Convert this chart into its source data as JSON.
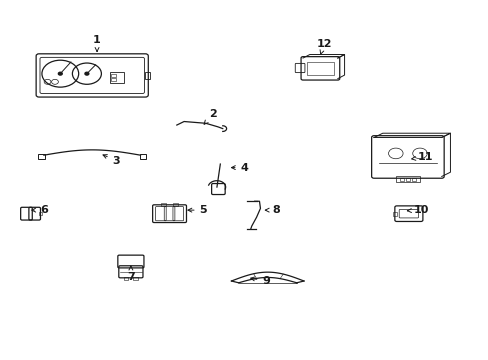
{
  "background_color": "#ffffff",
  "line_color": "#1a1a1a",
  "fig_width": 4.89,
  "fig_height": 3.6,
  "dpi": 100,
  "label_offsets": {
    "1": [
      0.195,
      0.895,
      0.195,
      0.852
    ],
    "2": [
      0.435,
      0.685,
      0.415,
      0.655
    ],
    "3": [
      0.235,
      0.555,
      0.2,
      0.575
    ],
    "4": [
      0.5,
      0.535,
      0.465,
      0.535
    ],
    "5": [
      0.415,
      0.415,
      0.375,
      0.415
    ],
    "6": [
      0.085,
      0.415,
      0.052,
      0.415
    ],
    "7": [
      0.265,
      0.225,
      0.265,
      0.26
    ],
    "8": [
      0.565,
      0.415,
      0.535,
      0.415
    ],
    "9": [
      0.545,
      0.215,
      0.505,
      0.225
    ],
    "10": [
      0.865,
      0.415,
      0.835,
      0.413
    ],
    "11": [
      0.875,
      0.565,
      0.838,
      0.558
    ],
    "12": [
      0.665,
      0.885,
      0.655,
      0.845
    ]
  }
}
